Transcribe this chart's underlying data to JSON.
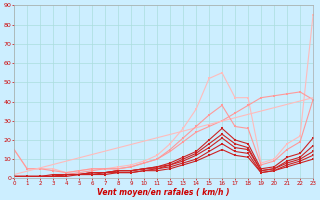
{
  "xlabel": "Vent moyen/en rafales ( km/h )",
  "bg_color": "#cceeff",
  "grid_color": "#aadddd",
  "xlim": [
    0,
    23
  ],
  "ylim": [
    0,
    90
  ],
  "yticks": [
    0,
    10,
    20,
    30,
    40,
    50,
    60,
    70,
    80,
    90
  ],
  "xticks": [
    0,
    1,
    2,
    3,
    4,
    5,
    6,
    7,
    8,
    9,
    10,
    11,
    12,
    13,
    14,
    15,
    16,
    17,
    18,
    19,
    20,
    21,
    22,
    23
  ],
  "lines": [
    {
      "x": [
        0,
        1,
        2,
        3,
        4,
        5,
        6,
        7,
        8,
        9,
        10,
        11,
        12,
        13,
        14,
        15,
        16,
        17,
        18,
        19,
        20,
        21,
        22,
        23
      ],
      "y": [
        15,
        5,
        5,
        5,
        3,
        4,
        5,
        5,
        6,
        7,
        9,
        12,
        18,
        26,
        36,
        52,
        55,
        42,
        42,
        8,
        10,
        18,
        22,
        85
      ],
      "color": "#ffbbbb",
      "lw": 0.8,
      "marker": true,
      "ms": 1.8
    },
    {
      "x": [
        0,
        1,
        2,
        3,
        4,
        5,
        6,
        7,
        8,
        9,
        10,
        11,
        12,
        13,
        14,
        15,
        16,
        17,
        18,
        19,
        20,
        21,
        22,
        23
      ],
      "y": [
        15,
        5,
        5,
        4,
        3,
        4,
        5,
        5,
        5,
        6,
        8,
        10,
        14,
        19,
        24,
        27,
        30,
        34,
        38,
        42,
        43,
        44,
        45,
        41
      ],
      "color": "#ff9999",
      "lw": 0.8,
      "marker": true,
      "ms": 1.8
    },
    {
      "x": [
        0,
        23
      ],
      "y": [
        2,
        42
      ],
      "color": "#ffbbbb",
      "lw": 0.8,
      "marker": false,
      "ms": 0
    },
    {
      "x": [
        0,
        1,
        2,
        3,
        4,
        5,
        6,
        7,
        8,
        9,
        10,
        11,
        12,
        13,
        14,
        15,
        16,
        17,
        18,
        19,
        20,
        21,
        22,
        23
      ],
      "y": [
        1,
        1,
        1,
        1,
        2,
        3,
        4,
        5,
        5,
        6,
        8,
        10,
        15,
        21,
        27,
        33,
        38,
        27,
        26,
        7,
        9,
        15,
        19,
        41
      ],
      "color": "#ff9999",
      "lw": 0.8,
      "marker": true,
      "ms": 1.8
    },
    {
      "x": [
        0,
        1,
        2,
        3,
        4,
        5,
        6,
        7,
        8,
        9,
        10,
        11,
        12,
        13,
        14,
        15,
        16,
        17,
        18,
        19,
        20,
        21,
        22,
        23
      ],
      "y": [
        1,
        1,
        1,
        1,
        2,
        2,
        3,
        3,
        4,
        4,
        5,
        6,
        8,
        11,
        14,
        20,
        26,
        20,
        18,
        5,
        6,
        11,
        13,
        21
      ],
      "color": "#cc2222",
      "lw": 0.8,
      "marker": true,
      "ms": 1.8
    },
    {
      "x": [
        0,
        1,
        2,
        3,
        4,
        5,
        6,
        7,
        8,
        9,
        10,
        11,
        12,
        13,
        14,
        15,
        16,
        17,
        18,
        19,
        20,
        21,
        22,
        23
      ],
      "y": [
        1,
        1,
        1,
        1,
        2,
        2,
        3,
        3,
        4,
        4,
        5,
        6,
        7,
        10,
        13,
        18,
        23,
        18,
        16,
        4,
        5,
        9,
        11,
        17
      ],
      "color": "#cc2222",
      "lw": 0.8,
      "marker": true,
      "ms": 1.8
    },
    {
      "x": [
        0,
        1,
        2,
        3,
        4,
        5,
        6,
        7,
        8,
        9,
        10,
        11,
        12,
        13,
        14,
        15,
        16,
        17,
        18,
        19,
        20,
        21,
        22,
        23
      ],
      "y": [
        1,
        1,
        1,
        2,
        2,
        2,
        3,
        3,
        4,
        4,
        5,
        5,
        7,
        9,
        12,
        16,
        21,
        16,
        15,
        4,
        5,
        8,
        10,
        14
      ],
      "color": "#cc2222",
      "lw": 0.8,
      "marker": true,
      "ms": 1.8
    },
    {
      "x": [
        0,
        1,
        2,
        3,
        4,
        5,
        6,
        7,
        8,
        9,
        10,
        11,
        12,
        13,
        14,
        15,
        16,
        17,
        18,
        19,
        20,
        21,
        22,
        23
      ],
      "y": [
        1,
        1,
        1,
        1,
        2,
        2,
        2,
        3,
        3,
        3,
        4,
        5,
        6,
        8,
        10,
        14,
        18,
        14,
        13,
        3,
        4,
        7,
        9,
        12
      ],
      "color": "#cc2222",
      "lw": 0.8,
      "marker": true,
      "ms": 1.8
    },
    {
      "x": [
        0,
        1,
        2,
        3,
        4,
        5,
        6,
        7,
        8,
        9,
        10,
        11,
        12,
        13,
        14,
        15,
        16,
        17,
        18,
        19,
        20,
        21,
        22,
        23
      ],
      "y": [
        1,
        1,
        1,
        1,
        1,
        2,
        2,
        2,
        3,
        3,
        4,
        4,
        5,
        7,
        9,
        12,
        15,
        12,
        11,
        3,
        4,
        6,
        8,
        10
      ],
      "color": "#cc2222",
      "lw": 0.8,
      "marker": true,
      "ms": 1.8
    }
  ]
}
